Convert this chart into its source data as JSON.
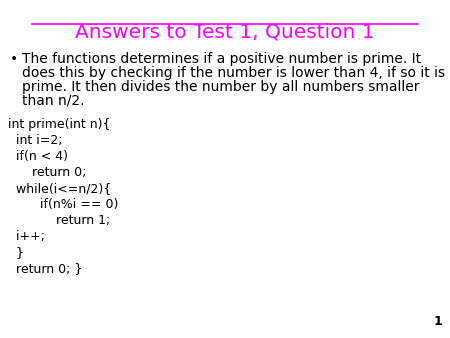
{
  "title": "Answers to Test 1, Question 1",
  "title_color": "#FF00FF",
  "title_fontsize": 14.5,
  "background_color": "#FFFFFF",
  "bullet_lines": [
    "The functions determines if a positive number is prime. It",
    "does this by checking if the number is lower than 4, if so it is",
    "prime. It then divides the number by all numbers smaller",
    "than n/2."
  ],
  "bullet_fontsize": 10,
  "bullet_color": "#000000",
  "code_lines": [
    "int prime(int n){",
    "  int i=2;",
    "  if(n < 4)",
    "      return 0;",
    "  while(i<=n/2){",
    "        if(n%i == 0)",
    "            return 1;",
    "  i++;",
    "  }",
    "  return 0; }"
  ],
  "code_fontsize": 9,
  "code_color": "#000000",
  "page_number": "1",
  "page_number_fontsize": 9,
  "page_number_color": "#000000"
}
